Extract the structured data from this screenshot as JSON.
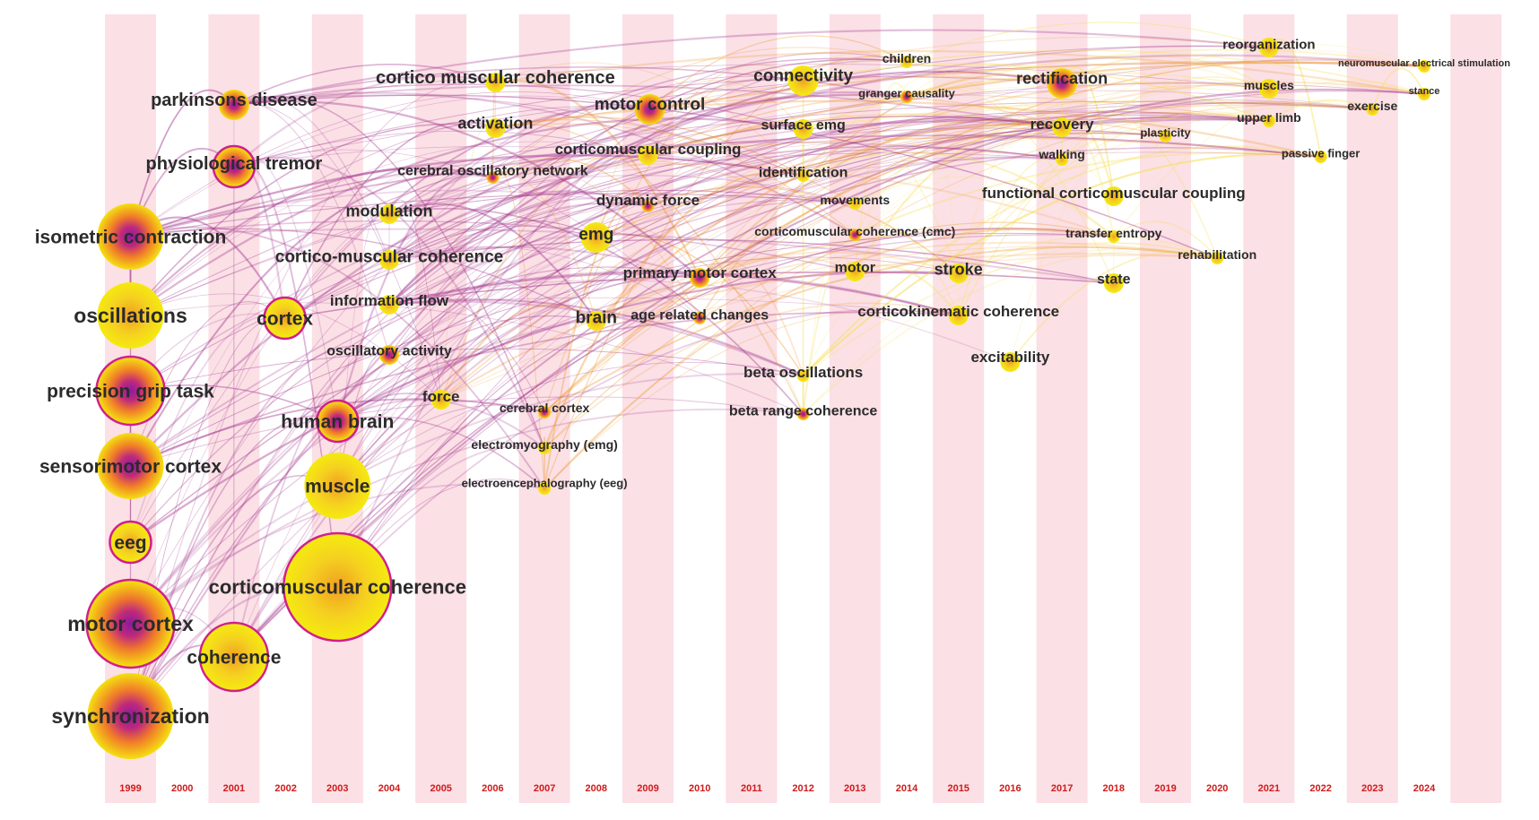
{
  "colors": {
    "band": "#fbe0e6",
    "year_text": "#d01a1a",
    "node_outer": "#f5e60d",
    "node_mid": "#f08a1a",
    "node_core": "#b01a8a",
    "ring": "#d0208a",
    "edge_old": "#a0308a",
    "edge_mid": "#f0a040",
    "edge_new": "#f7e060"
  },
  "years": [
    "1999",
    "2000",
    "2001",
    "2002",
    "2003",
    "2004",
    "2005",
    "2006",
    "2007",
    "2008",
    "2009",
    "2010",
    "2011",
    "2012",
    "2013",
    "2014",
    "2015",
    "2016",
    "2017",
    "2018",
    "2019",
    "2020",
    "2021",
    "2022",
    "2023",
    "2024"
  ],
  "nodes": [
    {
      "label": "isometric contraction",
      "year": "1999",
      "size": 5,
      "hot": true,
      "ring": false
    },
    {
      "label": "oscillations",
      "year": "1999",
      "size": 5,
      "hot": false,
      "ring": false
    },
    {
      "label": "precision grip task",
      "year": "1999",
      "size": 5,
      "hot": true,
      "ring": true
    },
    {
      "label": "sensorimotor cortex",
      "year": "1999",
      "size": 5,
      "hot": true,
      "ring": false
    },
    {
      "label": "eeg",
      "year": "1999",
      "size": 4,
      "hot": false,
      "ring": true
    },
    {
      "label": "motor cortex",
      "year": "1999",
      "size": 6,
      "hot": true,
      "ring": true
    },
    {
      "label": "synchronization",
      "year": "1999",
      "size": 6,
      "hot": true,
      "ring": false
    },
    {
      "label": "parkinsons disease",
      "year": "2001",
      "size": 3,
      "hot": true,
      "ring": false
    },
    {
      "label": "physiological tremor",
      "year": "2001",
      "size": 4,
      "hot": true,
      "ring": true
    },
    {
      "label": "coherence",
      "year": "2001",
      "size": 5,
      "hot": false,
      "ring": true
    },
    {
      "label": "cortex",
      "year": "2002",
      "size": 4,
      "hot": false,
      "ring": true
    },
    {
      "label": "human brain",
      "year": "2003",
      "size": 4,
      "hot": true,
      "ring": true
    },
    {
      "label": "muscle",
      "year": "2003",
      "size": 5,
      "hot": false,
      "ring": false
    },
    {
      "label": "corticomuscular coherence",
      "year": "2003",
      "size": 7,
      "hot": false,
      "ring": true
    },
    {
      "label": "modulation",
      "year": "2004",
      "size": 2,
      "hot": false,
      "ring": false
    },
    {
      "label": "cortico-muscular coherence",
      "year": "2004",
      "size": 2,
      "hot": false,
      "ring": false
    },
    {
      "label": "information flow",
      "year": "2004",
      "size": 2,
      "hot": false,
      "ring": false
    },
    {
      "label": "oscillatory activity",
      "year": "2004",
      "size": 2,
      "hot": true,
      "ring": false
    },
    {
      "label": "force",
      "year": "2005",
      "size": 2,
      "hot": false,
      "ring": false
    },
    {
      "label": "cortico muscular coherence",
      "year": "2006",
      "size": 2,
      "hot": false,
      "ring": false
    },
    {
      "label": "activation",
      "year": "2006",
      "size": 2,
      "hot": false,
      "ring": false
    },
    {
      "label": "cerebral oscillatory network",
      "year": "2006",
      "size": 1,
      "hot": true,
      "ring": false
    },
    {
      "label": "cerebral cortex",
      "year": "2007",
      "size": 1,
      "hot": true,
      "ring": false
    },
    {
      "label": "electromyography (emg)",
      "year": "2007",
      "size": 1,
      "hot": false,
      "ring": false
    },
    {
      "label": "electroencephalography (eeg)",
      "year": "2007",
      "size": 1,
      "hot": false,
      "ring": false
    },
    {
      "label": "brain",
      "year": "2008",
      "size": 2,
      "hot": false,
      "ring": false
    },
    {
      "label": "emg",
      "year": "2008",
      "size": 3,
      "hot": false,
      "ring": false
    },
    {
      "label": "motor control",
      "year": "2009",
      "size": 3,
      "hot": true,
      "ring": false
    },
    {
      "label": "corticomuscular coupling",
      "year": "2009",
      "size": 2,
      "hot": false,
      "ring": false
    },
    {
      "label": "dynamic force",
      "year": "2009",
      "size": 1,
      "hot": true,
      "ring": false
    },
    {
      "label": "primary motor cortex",
      "year": "2010",
      "size": 2,
      "hot": true,
      "ring": false
    },
    {
      "label": "age related changes",
      "year": "2010",
      "size": 1,
      "hot": true,
      "ring": false
    },
    {
      "label": "connectivity",
      "year": "2012",
      "size": 3,
      "hot": false,
      "ring": false
    },
    {
      "label": "surface emg",
      "year": "2012",
      "size": 2,
      "hot": false,
      "ring": false
    },
    {
      "label": "identification",
      "year": "2012",
      "size": 1,
      "hot": false,
      "ring": false
    },
    {
      "label": "beta oscillations",
      "year": "2012",
      "size": 1,
      "hot": false,
      "ring": false
    },
    {
      "label": "beta range coherence",
      "year": "2012",
      "size": 1,
      "hot": true,
      "ring": false
    },
    {
      "label": "movements",
      "year": "2013",
      "size": 1,
      "hot": false,
      "ring": false
    },
    {
      "label": "corticomuscular coherence (cmc)",
      "year": "2013",
      "size": 1,
      "hot": true,
      "ring": false
    },
    {
      "label": "motor",
      "year": "2013",
      "size": 2,
      "hot": false,
      "ring": false
    },
    {
      "label": "children",
      "year": "2014",
      "size": 1,
      "hot": false,
      "ring": false
    },
    {
      "label": "granger causality",
      "year": "2014",
      "size": 1,
      "hot": true,
      "ring": false
    },
    {
      "label": "stroke",
      "year": "2015",
      "size": 2,
      "hot": false,
      "ring": false
    },
    {
      "label": "corticokinematic coherence",
      "year": "2015",
      "size": 2,
      "hot": false,
      "ring": false
    },
    {
      "label": "excitability",
      "year": "2016",
      "size": 2,
      "hot": false,
      "ring": false
    },
    {
      "label": "rectification",
      "year": "2017",
      "size": 3,
      "hot": true,
      "ring": false
    },
    {
      "label": "recovery",
      "year": "2017",
      "size": 2,
      "hot": false,
      "ring": false
    },
    {
      "label": "walking",
      "year": "2017",
      "size": 1,
      "hot": false,
      "ring": false
    },
    {
      "label": "functional corticomuscular coupling",
      "year": "2018",
      "size": 2,
      "hot": false,
      "ring": false
    },
    {
      "label": "transfer entropy",
      "year": "2018",
      "size": 1,
      "hot": false,
      "ring": false
    },
    {
      "label": "state",
      "year": "2018",
      "size": 2,
      "hot": false,
      "ring": false
    },
    {
      "label": "plasticity",
      "year": "2019",
      "size": 1,
      "hot": false,
      "ring": false
    },
    {
      "label": "rehabilitation",
      "year": "2020",
      "size": 1,
      "hot": false,
      "ring": false
    },
    {
      "label": "reorganization",
      "year": "2021",
      "size": 2,
      "hot": false,
      "ring": false
    },
    {
      "label": "muscles",
      "year": "2021",
      "size": 2,
      "hot": false,
      "ring": false
    },
    {
      "label": "upper limb",
      "year": "2021",
      "size": 1,
      "hot": false,
      "ring": false
    },
    {
      "label": "passive finger",
      "year": "2022",
      "size": 1,
      "hot": false,
      "ring": false
    },
    {
      "label": "exercise",
      "year": "2023",
      "size": 1,
      "hot": false,
      "ring": false
    },
    {
      "label": "neuromuscular electrical stimulation",
      "year": "2024",
      "size": 1,
      "hot": false,
      "ring": false
    },
    {
      "label": "stance",
      "year": "2024",
      "size": 1,
      "hot": false,
      "ring": false
    }
  ]
}
